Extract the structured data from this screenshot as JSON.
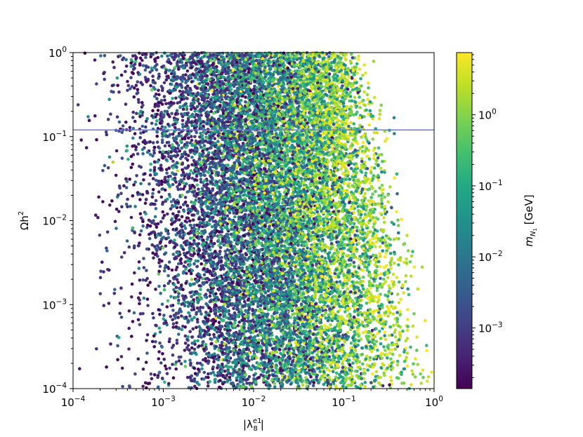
{
  "chart_data": {
    "type": "scatter",
    "xlabel": "|λ",
    "xlabel_sub": "8",
    "xlabel_sup": "e1",
    "xlabel_end": "|",
    "ylabel": "Ωh",
    "ylabel_sup": "2",
    "xscale": "log",
    "yscale": "log",
    "xlim": [
      0.0001,
      1
    ],
    "ylim": [
      0.0001,
      1
    ],
    "x_ticks": [
      {
        "base": "10",
        "exp": "−4"
      },
      {
        "base": "10",
        "exp": "−3"
      },
      {
        "base": "10",
        "exp": "−2"
      },
      {
        "base": "10",
        "exp": "−1"
      },
      {
        "base": "10",
        "exp": "0"
      }
    ],
    "y_ticks": [
      {
        "base": "10",
        "exp": "−4"
      },
      {
        "base": "10",
        "exp": "−3"
      },
      {
        "base": "10",
        "exp": "−2"
      },
      {
        "base": "10",
        "exp": "−1"
      },
      {
        "base": "10",
        "exp": "0"
      }
    ],
    "reference_line": {
      "y": 0.12,
      "color": "#6a75ee"
    },
    "colorbar": {
      "label": "m",
      "label_sub": "N",
      "label_subsub": "1",
      "label_units": " [GeV]",
      "colormap": "viridis",
      "range": [
        0.00014,
        7.5
      ],
      "scale": "log",
      "ticks": [
        {
          "value": 0.001,
          "base": "10",
          "exp": "−3"
        },
        {
          "value": 0.01,
          "base": "10",
          "exp": "−2"
        },
        {
          "value": 0.1,
          "base": "10",
          "exp": "−1"
        },
        {
          "value": 1,
          "base": "10",
          "exp": "0"
        }
      ]
    },
    "point_count_approx": 14000,
    "distribution_note_scale": "points denser at small λ for low mass; high-mass points extend to λ≈0.5"
  }
}
